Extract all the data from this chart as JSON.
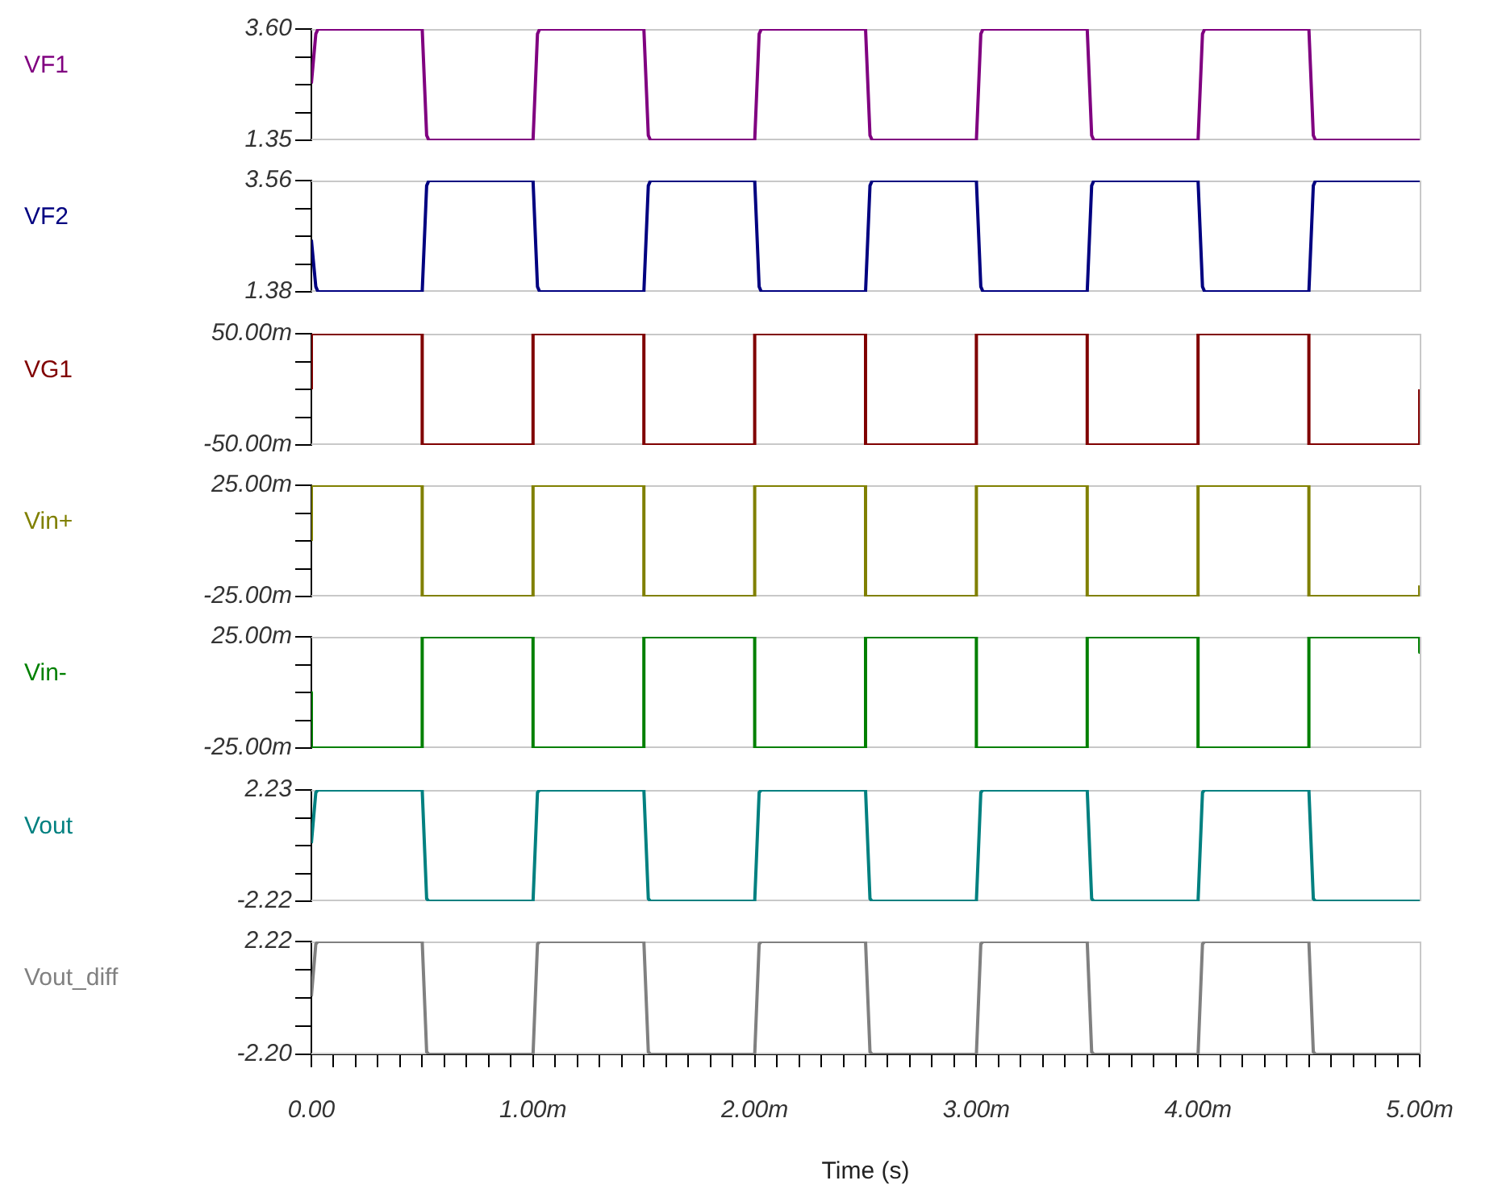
{
  "chart_data": [
    {
      "type": "line",
      "x": [
        0,
        0.02,
        0.03,
        0.5,
        0.52,
        0.53,
        1,
        1.02,
        1.03,
        1.5,
        1.52,
        1.53,
        2,
        2.02,
        2.03,
        2.5,
        2.52,
        2.53,
        3,
        3.02,
        3.03,
        3.5,
        3.52,
        3.53,
        4,
        4.02,
        4.03,
        4.5,
        4.52,
        4.53,
        5
      ],
      "series": [
        {
          "name": "VF1",
          "color": "#800080",
          "values": [
            2.5,
            3.5,
            3.6,
            3.6,
            1.45,
            1.35,
            1.35,
            3.5,
            3.6,
            3.6,
            1.45,
            1.35,
            1.35,
            3.5,
            3.6,
            3.6,
            1.45,
            1.35,
            1.35,
            3.5,
            3.6,
            3.6,
            1.45,
            1.35,
            1.35,
            3.5,
            3.6,
            3.6,
            1.45,
            1.35,
            1.35
          ]
        }
      ],
      "xlim": [
        0,
        5
      ],
      "ylim": [
        1.35,
        3.6
      ],
      "yticks": [
        {
          "value": 1.35,
          "label": "1.35"
        },
        {
          "value": 1.9125,
          "label": null
        },
        {
          "value": 2.475,
          "label": null
        },
        {
          "value": 3.0375,
          "label": null
        },
        {
          "value": 3.6,
          "label": "3.60"
        }
      ],
      "tick_labels": "y"
    },
    {
      "type": "line",
      "x": [
        0,
        0.02,
        0.03,
        0.5,
        0.52,
        0.53,
        1,
        1.02,
        1.03,
        1.5,
        1.52,
        1.53,
        2,
        2.02,
        2.03,
        2.5,
        2.52,
        2.53,
        3,
        3.02,
        3.03,
        3.5,
        3.52,
        3.53,
        4,
        4.02,
        4.03,
        4.5,
        4.52,
        4.53,
        5
      ],
      "series": [
        {
          "name": "VF2",
          "color": "#000080",
          "values": [
            2.4,
            1.48,
            1.38,
            1.38,
            3.46,
            3.56,
            3.56,
            1.48,
            1.38,
            1.38,
            3.46,
            3.56,
            3.56,
            1.48,
            1.38,
            1.38,
            3.46,
            3.56,
            3.56,
            1.48,
            1.38,
            1.38,
            3.46,
            3.56,
            3.56,
            1.48,
            1.38,
            1.38,
            3.46,
            3.56,
            3.56
          ]
        }
      ],
      "xlim": [
        0,
        5
      ],
      "ylim": [
        1.38,
        3.56
      ],
      "yticks": [
        {
          "value": 1.38,
          "label": "1.38"
        },
        {
          "value": 1.925,
          "label": null
        },
        {
          "value": 2.47,
          "label": null
        },
        {
          "value": 3.015,
          "label": null
        },
        {
          "value": 3.56,
          "label": "3.56"
        }
      ],
      "tick_labels": "y"
    },
    {
      "type": "line",
      "x": [
        0,
        0,
        0.5,
        0.5,
        1,
        1,
        1.5,
        1.5,
        2,
        2,
        2.5,
        2.5,
        3,
        3,
        3.5,
        3.5,
        4,
        4,
        4.5,
        4.5,
        5,
        5
      ],
      "series": [
        {
          "name": "VG1",
          "color": "#800000",
          "values": [
            0,
            50,
            50,
            -50,
            -50,
            50,
            50,
            -50,
            -50,
            50,
            50,
            -50,
            -50,
            50,
            50,
            -50,
            -50,
            50,
            50,
            -50,
            -50,
            0
          ]
        }
      ],
      "xlim": [
        0,
        5
      ],
      "ylim": [
        -50,
        50
      ],
      "yticks": [
        {
          "value": -50,
          "label": "-50.00m"
        },
        {
          "value": -25,
          "label": null
        },
        {
          "value": 0,
          "label": null
        },
        {
          "value": 25,
          "label": null
        },
        {
          "value": 50,
          "label": "50.00m"
        }
      ],
      "tick_labels": "y"
    },
    {
      "type": "line",
      "x": [
        0,
        0,
        0.5,
        0.5,
        1,
        1,
        1.5,
        1.5,
        2,
        2,
        2.5,
        2.5,
        3,
        3,
        3.5,
        3.5,
        4,
        4,
        4.5,
        4.5,
        5,
        5
      ],
      "series": [
        {
          "name": "Vin+",
          "color": "#808000",
          "values": [
            0,
            25,
            25,
            -25,
            -25,
            25,
            25,
            -25,
            -25,
            25,
            25,
            -25,
            -25,
            25,
            25,
            -25,
            -25,
            25,
            25,
            -25,
            -25,
            -20
          ]
        }
      ],
      "xlim": [
        0,
        5
      ],
      "ylim": [
        -25,
        25
      ],
      "yticks": [
        {
          "value": -25,
          "label": "-25.00m"
        },
        {
          "value": -12.5,
          "label": null
        },
        {
          "value": 0,
          "label": null
        },
        {
          "value": 12.5,
          "label": null
        },
        {
          "value": 25,
          "label": "25.00m"
        }
      ],
      "tick_labels": "y"
    },
    {
      "type": "line",
      "x": [
        0,
        0,
        0.5,
        0.5,
        1,
        1,
        1.5,
        1.5,
        2,
        2,
        2.5,
        2.5,
        3,
        3,
        3.5,
        3.5,
        4,
        4,
        4.5,
        4.5,
        5,
        5
      ],
      "series": [
        {
          "name": "Vin-",
          "color": "#008000",
          "values": [
            0,
            -25,
            -25,
            25,
            25,
            -25,
            -25,
            25,
            25,
            -25,
            -25,
            25,
            25,
            -25,
            -25,
            25,
            25,
            -25,
            -25,
            25,
            25,
            18
          ]
        }
      ],
      "xlim": [
        0,
        5
      ],
      "ylim": [
        -25,
        25
      ],
      "yticks": [
        {
          "value": -25,
          "label": "-25.00m"
        },
        {
          "value": -12.5,
          "label": null
        },
        {
          "value": 0,
          "label": null
        },
        {
          "value": 12.5,
          "label": null
        },
        {
          "value": 25,
          "label": "25.00m"
        }
      ],
      "tick_labels": "y"
    },
    {
      "type": "line",
      "x": [
        0,
        0.02,
        0.03,
        0.5,
        0.52,
        0.53,
        1,
        1.02,
        1.03,
        1.5,
        1.52,
        1.53,
        2,
        2.02,
        2.03,
        2.5,
        2.52,
        2.53,
        3,
        3.02,
        3.03,
        3.5,
        3.52,
        3.53,
        4,
        4.02,
        4.03,
        4.5,
        4.52,
        4.53,
        5
      ],
      "series": [
        {
          "name": "Vout",
          "color": "#008080",
          "values": [
            0.1,
            2.13,
            2.23,
            2.23,
            -2.12,
            -2.22,
            -2.22,
            2.13,
            2.23,
            2.23,
            -2.12,
            -2.22,
            -2.22,
            2.13,
            2.23,
            2.23,
            -2.12,
            -2.22,
            -2.22,
            2.13,
            2.23,
            2.23,
            -2.12,
            -2.22,
            -2.22,
            2.13,
            2.23,
            2.23,
            -2.12,
            -2.22,
            -2.22
          ]
        }
      ],
      "xlim": [
        0,
        5
      ],
      "ylim": [
        -2.22,
        2.23
      ],
      "yticks": [
        {
          "value": -2.22,
          "label": "-2.22"
        },
        {
          "value": -1.1075,
          "label": null
        },
        {
          "value": 0.005,
          "label": null
        },
        {
          "value": 1.1175,
          "label": null
        },
        {
          "value": 2.23,
          "label": "2.23"
        }
      ],
      "tick_labels": "y"
    },
    {
      "type": "line",
      "x": [
        0,
        0.02,
        0.03,
        0.5,
        0.52,
        0.53,
        1,
        1.02,
        1.03,
        1.5,
        1.52,
        1.53,
        2,
        2.02,
        2.03,
        2.5,
        2.52,
        2.53,
        3,
        3.02,
        3.03,
        3.5,
        3.52,
        3.53,
        4,
        4.02,
        4.03,
        4.5,
        4.52,
        4.53,
        5
      ],
      "series": [
        {
          "name": "Vout_diff",
          "color": "#808080",
          "values": [
            0.07,
            2.12,
            2.22,
            2.22,
            -2.1,
            -2.2,
            -2.2,
            2.12,
            2.22,
            2.22,
            -2.1,
            -2.2,
            -2.2,
            2.12,
            2.22,
            2.22,
            -2.1,
            -2.2,
            -2.2,
            2.12,
            2.22,
            2.22,
            -2.1,
            -2.2,
            -2.2,
            2.12,
            2.22,
            2.22,
            -2.1,
            -2.2,
            -2.2
          ]
        }
      ],
      "xlabel": "Time (s)",
      "xlim": [
        0,
        5
      ],
      "xticks": [
        {
          "value": 0,
          "label": "0.00"
        },
        {
          "value": 0.1,
          "label": null
        },
        {
          "value": 0.2,
          "label": null
        },
        {
          "value": 0.3,
          "label": null
        },
        {
          "value": 0.4,
          "label": null
        },
        {
          "value": 0.5,
          "label": null
        },
        {
          "value": 0.6,
          "label": null
        },
        {
          "value": 0.7,
          "label": null
        },
        {
          "value": 0.8,
          "label": null
        },
        {
          "value": 0.9,
          "label": null
        },
        {
          "value": 1,
          "label": "1.00m"
        },
        {
          "value": 1.1,
          "label": null
        },
        {
          "value": 1.2,
          "label": null
        },
        {
          "value": 1.3,
          "label": null
        },
        {
          "value": 1.4,
          "label": null
        },
        {
          "value": 1.5,
          "label": null
        },
        {
          "value": 1.6,
          "label": null
        },
        {
          "value": 1.7,
          "label": null
        },
        {
          "value": 1.8,
          "label": null
        },
        {
          "value": 1.9,
          "label": null
        },
        {
          "value": 2,
          "label": "2.00m"
        },
        {
          "value": 2.1,
          "label": null
        },
        {
          "value": 2.2,
          "label": null
        },
        {
          "value": 2.3,
          "label": null
        },
        {
          "value": 2.4,
          "label": null
        },
        {
          "value": 2.5,
          "label": null
        },
        {
          "value": 2.6,
          "label": null
        },
        {
          "value": 2.7,
          "label": null
        },
        {
          "value": 2.8,
          "label": null
        },
        {
          "value": 2.9,
          "label": null
        },
        {
          "value": 3,
          "label": "3.00m"
        },
        {
          "value": 3.1,
          "label": null
        },
        {
          "value": 3.2,
          "label": null
        },
        {
          "value": 3.3,
          "label": null
        },
        {
          "value": 3.4,
          "label": null
        },
        {
          "value": 3.5,
          "label": null
        },
        {
          "value": 3.6,
          "label": null
        },
        {
          "value": 3.7,
          "label": null
        },
        {
          "value": 3.8,
          "label": null
        },
        {
          "value": 3.9,
          "label": null
        },
        {
          "value": 4,
          "label": "4.00m"
        },
        {
          "value": 4.1,
          "label": null
        },
        {
          "value": 4.2,
          "label": null
        },
        {
          "value": 4.3,
          "label": null
        },
        {
          "value": 4.4,
          "label": null
        },
        {
          "value": 4.5,
          "label": null
        },
        {
          "value": 4.6,
          "label": null
        },
        {
          "value": 4.7,
          "label": null
        },
        {
          "value": 4.8,
          "label": null
        },
        {
          "value": 4.9,
          "label": null
        },
        {
          "value": 5,
          "label": "5.00m"
        }
      ],
      "ylim": [
        -2.2,
        2.22
      ],
      "yticks": [
        {
          "value": -2.2,
          "label": "-2.20"
        },
        {
          "value": -1.095,
          "label": null
        },
        {
          "value": 0.01,
          "label": null
        },
        {
          "value": 1.115,
          "label": null
        },
        {
          "value": 2.22,
          "label": "2.22"
        }
      ]
    }
  ]
}
